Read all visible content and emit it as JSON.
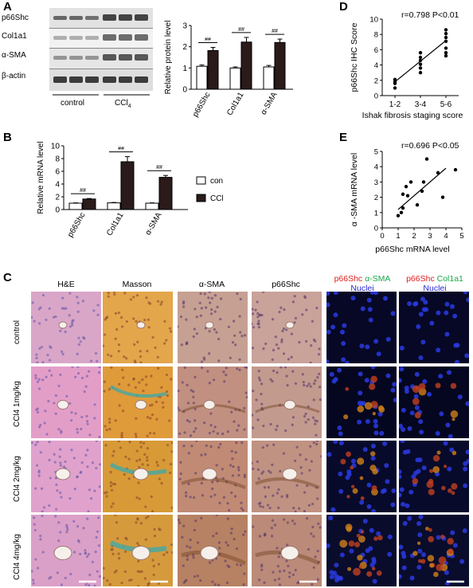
{
  "panels": {
    "A": {
      "letter": "A",
      "blot": {
        "rows": [
          "p66Shc",
          "Col1a1",
          "α-SMA",
          "β-actin"
        ],
        "groups": [
          "control",
          "CCl",
          "4"
        ]
      },
      "chart": {
        "ylabel": "Relative protein level",
        "significance": "##"
      }
    },
    "B": {
      "letter": "B",
      "chart": {
        "ylabel": "Relative mRNA level",
        "significance": "##",
        "legend": [
          "control",
          "CCl",
          "4"
        ]
      }
    },
    "C": {
      "letter": "C",
      "columns": [
        "H&E",
        "Masson",
        "α-SMA",
        "p66Shc"
      ],
      "fluor_col1": {
        "red": "p66Shc",
        "green": "α-SMA",
        "blue": "Nuclei"
      },
      "fluor_col2": {
        "red": "p66Shc",
        "green": "Col1a1",
        "blue": "Nuclei"
      },
      "rows": [
        "control",
        "CCl4  1mg/kg",
        "CCl4  2mg/kg",
        "CCl4  4mg/kg"
      ]
    },
    "D": {
      "letter": "D",
      "stat": "r=0.798 P<0.01",
      "ylabel": "p66Shc IHC Score",
      "xlabel": "Ishak fibrosis staging score"
    },
    "E": {
      "letter": "E",
      "stat": "r=0.696 P<0.05",
      "ylabel": "α -SMA  mRNA level",
      "xlabel": "p66Shc mRNA level"
    }
  },
  "chart_data": [
    {
      "id": "A-bar",
      "type": "bar",
      "categories": [
        "p66Shc",
        "Col1a1",
        "α-SMA"
      ],
      "series": [
        {
          "values": [
            1.08,
            1.0,
            1.05
          ],
          "errors": [
            0.06,
            0.05,
            0.07
          ],
          "color": "#ffffff"
        },
        {
          "values": [
            1.82,
            2.22,
            2.2
          ],
          "errors": [
            0.15,
            0.22,
            0.16
          ],
          "color": "#2a1a1a"
        }
      ],
      "ylabel": "Relative protein level",
      "ylim": [
        0,
        3
      ],
      "yticks": [
        0,
        1,
        2,
        3
      ]
    },
    {
      "id": "B-bar",
      "type": "bar",
      "categories": [
        "p66Shc",
        "Col1a1",
        "α-SMA"
      ],
      "series": [
        {
          "name": "control",
          "values": [
            1.0,
            1.05,
            1.0
          ],
          "errors": [
            0.05,
            0.06,
            0.05
          ],
          "color": "#ffffff"
        },
        {
          "name": "CCl4",
          "values": [
            1.65,
            7.5,
            5.05
          ],
          "errors": [
            0.08,
            0.8,
            0.3
          ],
          "color": "#2a1a1a"
        }
      ],
      "ylabel": "Relative mRNA level",
      "ylim": [
        0,
        10
      ],
      "yticks": [
        0,
        2,
        4,
        6,
        8,
        10
      ],
      "legend": "right"
    },
    {
      "id": "D-scatter",
      "type": "scatter",
      "categories": [
        "1-2",
        "3-4",
        "5-6"
      ],
      "points": [
        [
          1,
          1.0
        ],
        [
          1,
          1.6
        ],
        [
          1,
          1.8
        ],
        [
          1,
          2.1
        ],
        [
          2,
          3.0
        ],
        [
          2,
          3.6
        ],
        [
          2,
          4.1
        ],
        [
          2,
          4.6
        ],
        [
          2,
          5.0
        ],
        [
          2,
          5.6
        ],
        [
          3,
          5.2
        ],
        [
          3,
          5.6
        ],
        [
          3,
          6.2
        ],
        [
          3,
          7.1
        ],
        [
          3,
          7.6
        ],
        [
          3,
          8.1
        ],
        [
          3,
          8.6
        ]
      ],
      "fit": [
        [
          1,
          1.8
        ],
        [
          3,
          7.2
        ]
      ],
      "ylabel": "p66Shc IHC Score",
      "xlabel": "Ishak fibrosis staging score",
      "ylim": [
        0,
        10
      ],
      "yticks": [
        0,
        2,
        4,
        6,
        8,
        10
      ]
    },
    {
      "id": "E-scatter",
      "type": "scatter",
      "points": [
        [
          1.0,
          0.8
        ],
        [
          1.2,
          1.0
        ],
        [
          1.3,
          1.3
        ],
        [
          1.3,
          2.2
        ],
        [
          1.6,
          2.1
        ],
        [
          1.5,
          2.7
        ],
        [
          1.8,
          3.0
        ],
        [
          2.2,
          1.5
        ],
        [
          2.5,
          2.4
        ],
        [
          2.6,
          3.0
        ],
        [
          2.8,
          4.5
        ],
        [
          3.5,
          3.6
        ],
        [
          3.8,
          2.0
        ],
        [
          4.6,
          3.8
        ]
      ],
      "fit": [
        [
          1.0,
          1.2
        ],
        [
          4.0,
          3.9
        ]
      ],
      "ylabel": "α -SMA  mRNA level",
      "xlabel": "p66Shc mRNA level",
      "xlim": [
        0,
        5
      ],
      "ylim": [
        0,
        5
      ],
      "xticks": [
        0,
        1,
        2,
        3,
        4,
        5
      ],
      "yticks": [
        0,
        1,
        2,
        3,
        4,
        5
      ]
    }
  ]
}
